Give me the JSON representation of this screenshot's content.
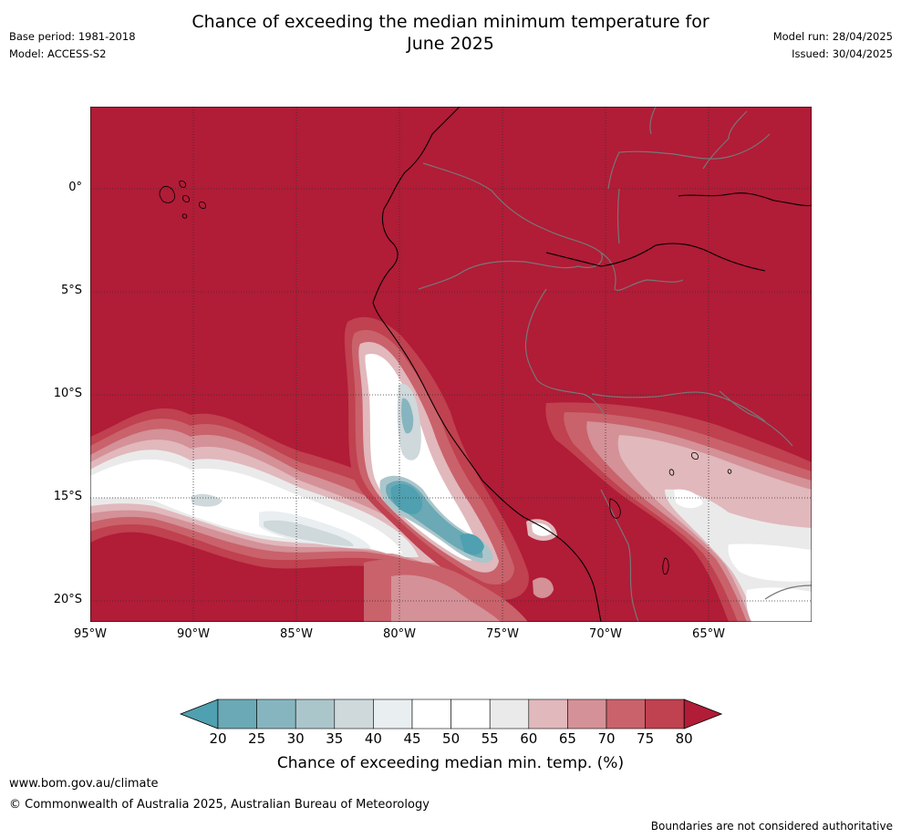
{
  "title": {
    "line1": "Chance of exceeding the median minimum temperature for",
    "line2": "June 2025"
  },
  "meta": {
    "base_period": "Base period: 1981-2018",
    "model": "Model: ACCESS-S2",
    "model_run": "Model run: 28/04/2025",
    "issued": "Issued: 30/04/2025"
  },
  "map": {
    "lat_ticks": [
      "0°",
      "5°S",
      "10°S",
      "15°S",
      "20°S"
    ],
    "lon_ticks": [
      "95°W",
      "90°W",
      "85°W",
      "80°W",
      "75°W",
      "70°W",
      "65°W"
    ],
    "background_category": "75-80+",
    "colors": {
      "c80plus": "#b11c37",
      "c75": "#c0414f",
      "c70": "#c9626b",
      "c65": "#d49197",
      "c60": "#e1b8bc",
      "c55": "#ebeaea",
      "c50": "#ffffff",
      "c45": "#ffffff",
      "c40": "#e9eef1",
      "c35": "#cfd8db",
      "c30": "#abc6cb",
      "c25": "#87b5bf",
      "c20": "#6aa9b5",
      "c20minus": "#4fa0b0"
    }
  },
  "colorbar": {
    "labels": [
      "20",
      "25",
      "30",
      "35",
      "40",
      "45",
      "50",
      "55",
      "60",
      "65",
      "70",
      "75",
      "80"
    ],
    "colors": [
      "#6aa9b5",
      "#87b5bf",
      "#abc6cb",
      "#cfd8db",
      "#e9eef1",
      "#ffffff",
      "#ffffff",
      "#ebeaea",
      "#e1b8bc",
      "#d49197",
      "#c9626b",
      "#c0414f"
    ],
    "under_color": "#4fa0b0",
    "over_color": "#b11c37",
    "title": "Chance of exceeding median min. temp. (%)"
  },
  "footer": {
    "url": "www.bom.gov.au/climate",
    "copyright": "© Commonwealth of Australia 2025, Australian Bureau of Meteorology",
    "note": "Boundaries are not considered authoritative"
  }
}
